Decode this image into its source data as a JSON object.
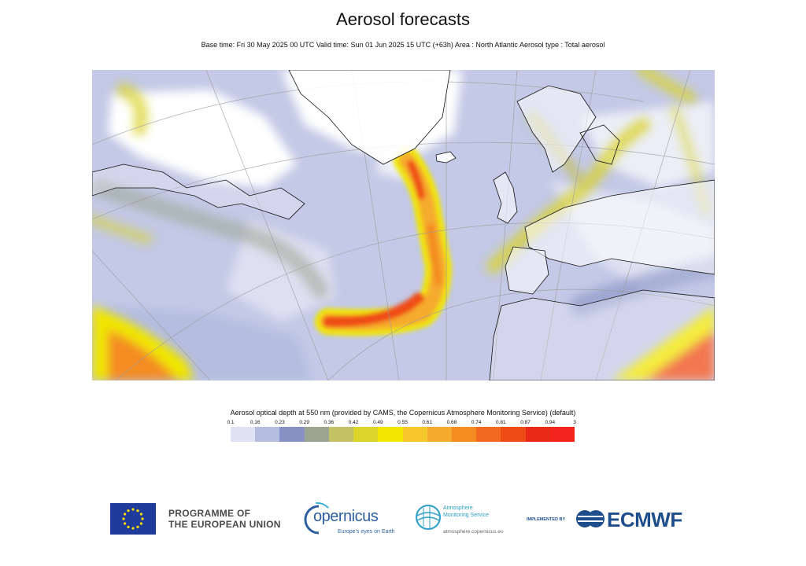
{
  "header": {
    "title": "Aerosol forecasts",
    "subtitle": "Base time: Fri 30 May 2025 00 UTC Valid time: Sun 01 Jun 2025 15 UTC (+63h) Area : North Atlantic Aerosol type : Total aerosol"
  },
  "legend": {
    "title": "Aerosol optical depth at 550 nm (provided by CAMS, the Copernicus Atmosphere Monitoring Service) (default)",
    "ticks": [
      "0.1",
      "0.16",
      "0.23",
      "0.29",
      "0.36",
      "0.42",
      "0.49",
      "0.55",
      "0.61",
      "0.68",
      "0.74",
      "0.81",
      "0.87",
      "0.94",
      "3"
    ],
    "colors": [
      "#dfe2f2",
      "#b5bde0",
      "#8791c4",
      "#9aa591",
      "#c4c265",
      "#d9d32a",
      "#f0e600",
      "#f6c72d",
      "#f5ab2e",
      "#f48c22",
      "#f26a1f",
      "#ef4b17",
      "#e82a17",
      "#f3231c"
    ]
  },
  "map": {
    "background_color": "#c3c9e6",
    "land_color": "#ffffff",
    "coast_color": "#111111",
    "grid_color": "#9a9a9a"
  },
  "footer": {
    "eu_label_line1": "PROGRAMME OF",
    "eu_label_line2": "THE EUROPEAN UNION",
    "copernicus_word": "opernicus",
    "copernicus_tagline": "Europe's eyes on Earth",
    "cams_line1": "Atmosphere",
    "cams_line2": "Monitoring Service",
    "cams_url": "atmosphere.copernicus.eu",
    "implemented_by": "IMPLEMENTED BY",
    "ecmwf": "ECMWF"
  }
}
